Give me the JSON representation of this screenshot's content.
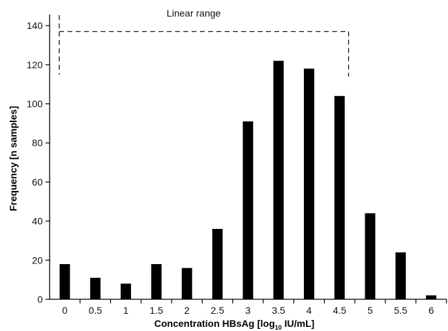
{
  "chart_data": {
    "type": "bar",
    "categories": [
      "0",
      "0.5",
      "1",
      "1.5",
      "2",
      "2.5",
      "3",
      "3.5",
      "4",
      "4.5",
      "5",
      "5.5",
      "6"
    ],
    "values": [
      18,
      11,
      8,
      18,
      16,
      36,
      91,
      122,
      118,
      104,
      44,
      24,
      2
    ],
    "ylabel": "Frequency [n samples]",
    "xlabel": {
      "main": "Concentration HBsAg [log",
      "subscript": "10",
      "units": " IU/mL]"
    },
    "yticks": [
      "0",
      "20",
      "40",
      "60",
      "80",
      "100",
      "120",
      "140"
    ],
    "ylim": [
      0,
      145
    ],
    "grid": false,
    "bar_color": "#000000",
    "annotation": {
      "text": "Linear range",
      "x_start": 0,
      "x_end": 4.5,
      "y": 137
    }
  }
}
